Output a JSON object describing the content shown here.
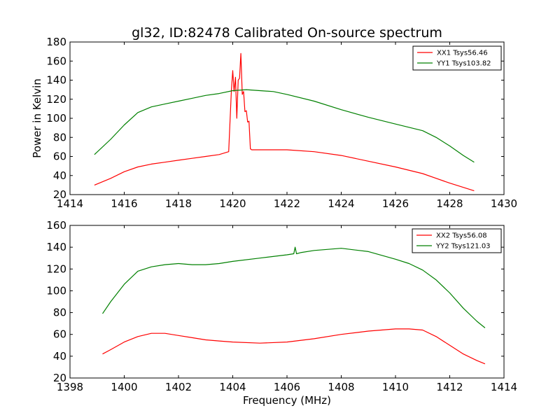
{
  "title": "gl32, ID:82478 Calibrated On-source spectrum",
  "colors": {
    "xx": "#ff0000",
    "yy": "#008000"
  },
  "chart_data": [
    {
      "type": "line",
      "xlabel": "",
      "ylabel": "Power in Kelvin",
      "xlim": [
        1414,
        1430
      ],
      "ylim": [
        20,
        180
      ],
      "xticks": [
        "1414",
        "1416",
        "1418",
        "1420",
        "1422",
        "1424",
        "1426",
        "1428",
        "1430"
      ],
      "yticks": [
        "20",
        "40",
        "60",
        "80",
        "100",
        "120",
        "140",
        "160",
        "180"
      ],
      "legend_position": "top-right",
      "series": [
        {
          "name": "XX1 Tsys56.46",
          "color": "#ff0000",
          "x": [
            1414.9,
            1415.5,
            1416.0,
            1416.5,
            1417.0,
            1417.5,
            1418.0,
            1418.5,
            1419.0,
            1419.5,
            1419.85,
            1419.95,
            1420.0,
            1420.05,
            1420.1,
            1420.15,
            1420.2,
            1420.25,
            1420.3,
            1420.35,
            1420.4,
            1420.45,
            1420.5,
            1420.55,
            1420.6,
            1420.65,
            1420.7,
            1420.8,
            1421.0,
            1422.0,
            1423.0,
            1424.0,
            1425.0,
            1426.0,
            1427.0,
            1428.0,
            1428.9
          ],
          "y": [
            30,
            37,
            44,
            49,
            52,
            54,
            56,
            58,
            60,
            62,
            65,
            130,
            150,
            128,
            143,
            100,
            140,
            142,
            168,
            125,
            128,
            107,
            108,
            96,
            97,
            68,
            67,
            67,
            67,
            67,
            65,
            61,
            55,
            49,
            42,
            32,
            24
          ]
        },
        {
          "name": "YY1 Tsys103.82",
          "color": "#008000",
          "x": [
            1414.9,
            1415.5,
            1416.0,
            1416.5,
            1417.0,
            1417.5,
            1418.0,
            1418.5,
            1419.0,
            1419.5,
            1420.0,
            1420.5,
            1421.0,
            1421.5,
            1422.0,
            1423.0,
            1424.0,
            1425.0,
            1426.0,
            1427.0,
            1427.5,
            1428.0,
            1428.5,
            1428.9
          ],
          "y": [
            62,
            78,
            93,
            106,
            112,
            115,
            118,
            121,
            124,
            126,
            129,
            130,
            129,
            128,
            125,
            118,
            109,
            101,
            94,
            87,
            80,
            71,
            61,
            54
          ]
        }
      ]
    },
    {
      "type": "line",
      "xlabel": "Frequency (MHz)",
      "ylabel": "",
      "xlim": [
        1398,
        1414
      ],
      "ylim": [
        20,
        160
      ],
      "xticks": [
        "1398",
        "1400",
        "1402",
        "1404",
        "1406",
        "1408",
        "1410",
        "1412",
        "1414"
      ],
      "yticks": [
        "20",
        "40",
        "60",
        "80",
        "100",
        "120",
        "140",
        "160"
      ],
      "legend_position": "top-right",
      "series": [
        {
          "name": "XX2 Tsys56.08",
          "color": "#ff0000",
          "x": [
            1399.2,
            1399.5,
            1400.0,
            1400.5,
            1401.0,
            1401.5,
            1402.0,
            1402.5,
            1403.0,
            1403.5,
            1404.0,
            1405.0,
            1406.0,
            1407.0,
            1408.0,
            1409.0,
            1410.0,
            1410.5,
            1411.0,
            1411.5,
            1412.0,
            1412.5,
            1413.0,
            1413.3
          ],
          "y": [
            42,
            46,
            53,
            58,
            61,
            61,
            59,
            57,
            55,
            54,
            53,
            52,
            53,
            56,
            60,
            63,
            65,
            65,
            64,
            58,
            50,
            42,
            36,
            33
          ]
        },
        {
          "name": "YY2 Tsys121.03",
          "color": "#008000",
          "x": [
            1399.2,
            1399.5,
            1400.0,
            1400.5,
            1401.0,
            1401.5,
            1402.0,
            1402.5,
            1403.0,
            1403.5,
            1404.0,
            1405.0,
            1406.0,
            1406.25,
            1406.3,
            1406.35,
            1406.5,
            1407.0,
            1408.0,
            1409.0,
            1410.0,
            1410.5,
            1411.0,
            1411.5,
            1412.0,
            1412.5,
            1413.0,
            1413.3
          ],
          "y": [
            79,
            90,
            106,
            118,
            122,
            124,
            125,
            124,
            124,
            125,
            127,
            130,
            133,
            134,
            140,
            134,
            135,
            137,
            139,
            136,
            129,
            125,
            119,
            110,
            98,
            84,
            72,
            66
          ]
        }
      ]
    }
  ]
}
